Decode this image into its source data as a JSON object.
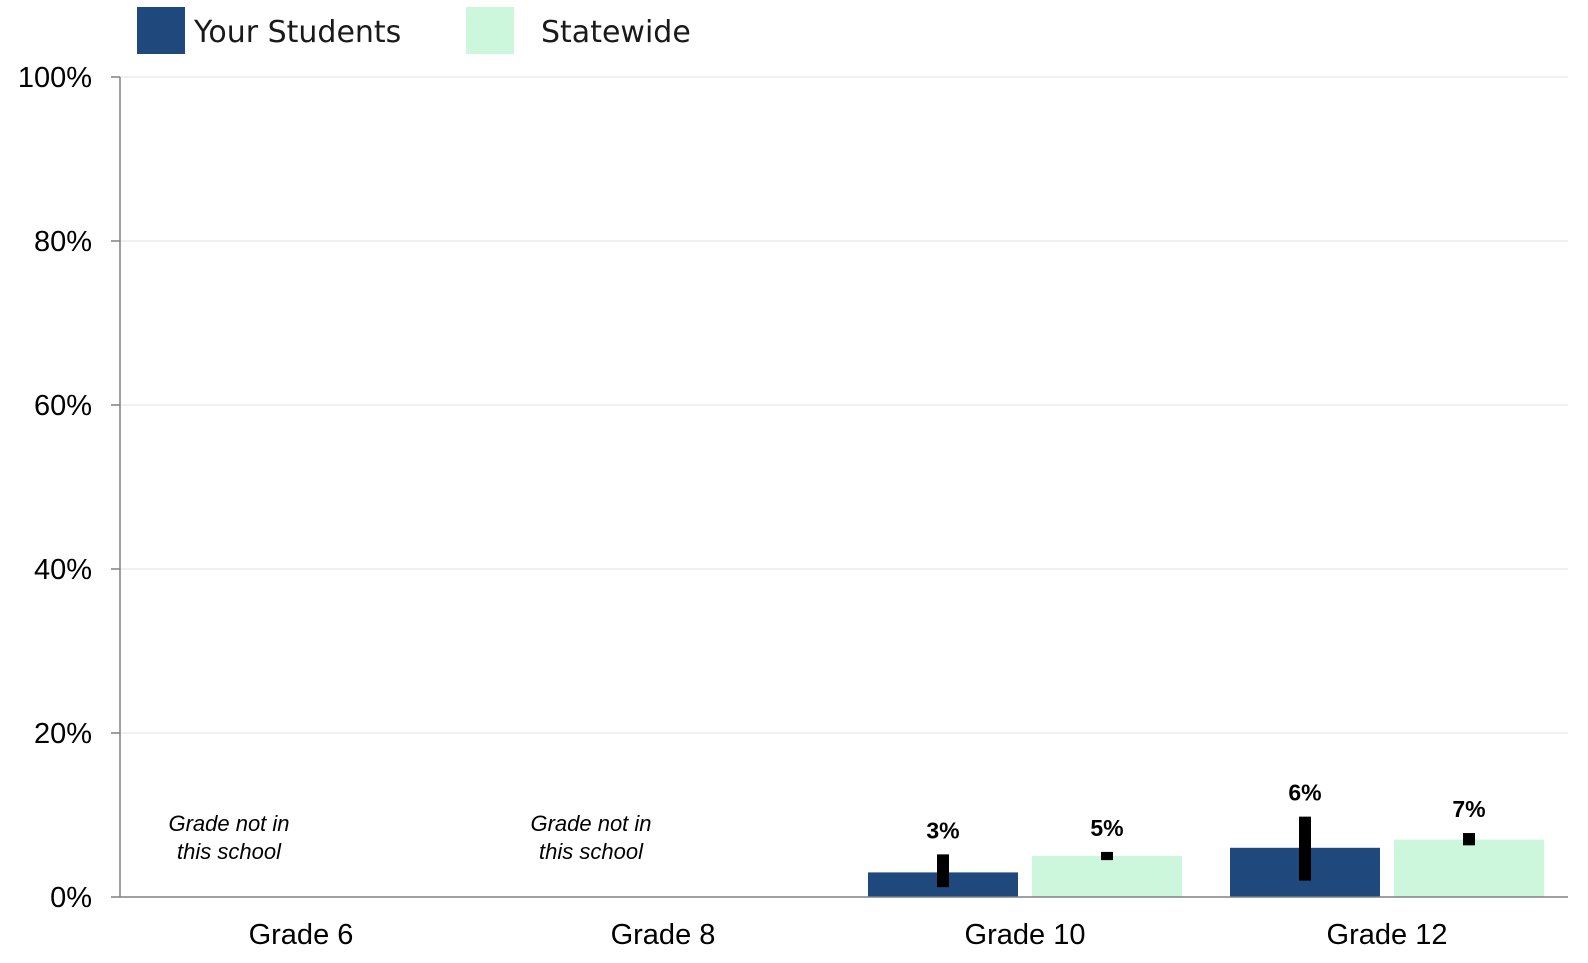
{
  "chart_data": {
    "type": "bar",
    "categories": [
      "Grade 6",
      "Grade 8",
      "Grade 10",
      "Grade 12"
    ],
    "series": [
      {
        "name": "Your Students",
        "color": "#1f497d",
        "values": [
          null,
          null,
          3,
          6
        ],
        "labels": [
          "",
          "",
          "3%",
          "6%"
        ],
        "error_low": [
          null,
          null,
          1.2,
          2
        ],
        "error_high": [
          null,
          null,
          5.2,
          9.8
        ]
      },
      {
        "name": "Statewide",
        "color": "#ccf7dc",
        "values": [
          null,
          null,
          5,
          7
        ],
        "labels": [
          "",
          "",
          "5%",
          "7%"
        ],
        "error_low": [
          null,
          null,
          4.5,
          6.3
        ],
        "error_high": [
          null,
          null,
          5.5,
          7.8
        ]
      }
    ],
    "notes": [
      {
        "category_index": 0,
        "lines": [
          "Grade not in",
          "this school"
        ]
      },
      {
        "category_index": 1,
        "lines": [
          "Grade not in",
          "this school"
        ]
      }
    ],
    "ylim": [
      0,
      100
    ],
    "yticks": [
      0,
      20,
      40,
      60,
      80,
      100
    ],
    "ytick_labels": [
      "0%",
      "20%",
      "40%",
      "60%",
      "80%",
      "100%"
    ],
    "grid": true,
    "legend_position": "top-left",
    "title": "",
    "xlabel": "",
    "ylabel": ""
  }
}
